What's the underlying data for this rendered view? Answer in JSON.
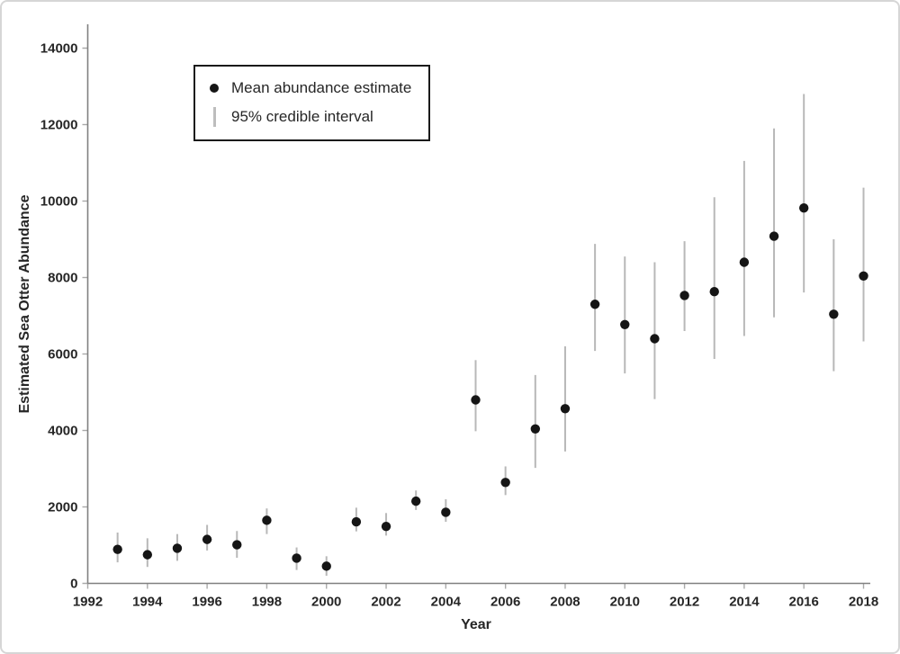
{
  "figure": {
    "x_axis_label": "Year",
    "y_axis_label": "Estimated Sea Otter Abundance"
  },
  "legend": {
    "marker_label": "Mean abundance estimate",
    "interval_label": "95% credible interval"
  },
  "colors": {
    "dot": "#151515",
    "interval_bar": "#b8b8b8",
    "axis_line": "#808080",
    "tick_mark": "#a9a9a9",
    "tick_text": "#262626",
    "legend_border": "#1a1a1a",
    "figure_border": "#d6d6d6"
  },
  "chart_data": {
    "type": "scatter",
    "title": "",
    "xlabel": "Year",
    "ylabel": "Estimated Sea Otter Abundance",
    "xlim": [
      1992,
      2018.7
    ],
    "ylim": [
      0,
      15000
    ],
    "grid": false,
    "legend_position": "top-left",
    "x_ticks": [
      1992,
      1994,
      1996,
      1998,
      2000,
      2002,
      2004,
      2006,
      2008,
      2010,
      2012,
      2014,
      2016,
      2018
    ],
    "y_ticks": [
      0,
      2000,
      4000,
      6000,
      8000,
      10000,
      12000,
      14000
    ],
    "series_name": "Mean abundance estimate",
    "interval_name": "95% credible interval",
    "points": [
      {
        "year": 1993,
        "mean": 890,
        "low": 550,
        "high": 1330
      },
      {
        "year": 1994,
        "mean": 750,
        "low": 430,
        "high": 1180
      },
      {
        "year": 1995,
        "mean": 920,
        "low": 590,
        "high": 1290
      },
      {
        "year": 1996,
        "mean": 1150,
        "low": 860,
        "high": 1530
      },
      {
        "year": 1997,
        "mean": 1010,
        "low": 670,
        "high": 1370
      },
      {
        "year": 1998,
        "mean": 1650,
        "low": 1290,
        "high": 1960
      },
      {
        "year": 1999,
        "mean": 660,
        "low": 350,
        "high": 940
      },
      {
        "year": 2000,
        "mean": 450,
        "low": 200,
        "high": 710
      },
      {
        "year": 2001,
        "mean": 1610,
        "low": 1360,
        "high": 1980
      },
      {
        "year": 2002,
        "mean": 1490,
        "low": 1250,
        "high": 1840
      },
      {
        "year": 2003,
        "mean": 2150,
        "low": 1920,
        "high": 2430
      },
      {
        "year": 2004,
        "mean": 1860,
        "low": 1610,
        "high": 2200
      },
      {
        "year": 2005,
        "mean": 4800,
        "low": 3980,
        "high": 5840
      },
      {
        "year": 2006,
        "mean": 2640,
        "low": 2310,
        "high": 3060
      },
      {
        "year": 2007,
        "mean": 4040,
        "low": 3020,
        "high": 5450
      },
      {
        "year": 2008,
        "mean": 4570,
        "low": 3450,
        "high": 6200
      },
      {
        "year": 2009,
        "mean": 7300,
        "low": 6080,
        "high": 8880
      },
      {
        "year": 2010,
        "mean": 6770,
        "low": 5490,
        "high": 8550
      },
      {
        "year": 2011,
        "mean": 6400,
        "low": 4820,
        "high": 8400
      },
      {
        "year": 2012,
        "mean": 7530,
        "low": 6600,
        "high": 8950
      },
      {
        "year": 2013,
        "mean": 7630,
        "low": 5870,
        "high": 10100
      },
      {
        "year": 2014,
        "mean": 8400,
        "low": 6470,
        "high": 11050
      },
      {
        "year": 2015,
        "mean": 9080,
        "low": 6960,
        "high": 11900
      },
      {
        "year": 2016,
        "mean": 9820,
        "low": 7610,
        "high": 12800
      },
      {
        "year": 2017,
        "mean": 7040,
        "low": 5550,
        "high": 9000
      },
      {
        "year": 2018,
        "mean": 8040,
        "low": 6330,
        "high": 10350
      }
    ]
  }
}
